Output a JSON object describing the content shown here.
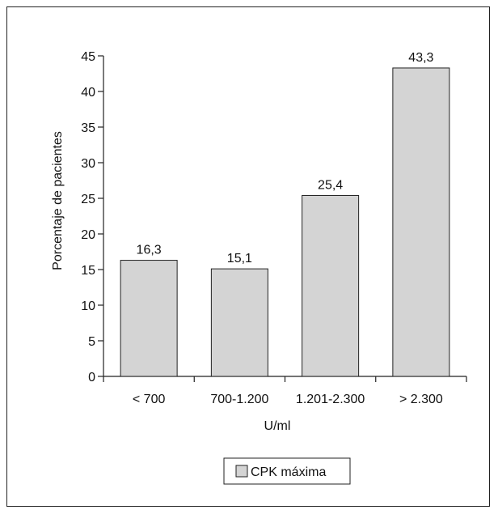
{
  "chart_data": {
    "type": "bar",
    "categories": [
      "< 700",
      "700-1.200",
      "1.201-2.300",
      "> 2.300"
    ],
    "series": [
      {
        "name": "CPK máxima",
        "values": [
          16.3,
          15.1,
          25.4,
          43.3
        ]
      }
    ],
    "value_labels": [
      "16,3",
      "15,1",
      "25,4",
      "43,3"
    ],
    "title": "",
    "xlabel": "U/ml",
    "ylabel": "Porcentaje de pacientes",
    "ylim": [
      0,
      45
    ],
    "yticks": [
      0,
      5,
      10,
      15,
      20,
      25,
      30,
      35,
      40,
      45
    ],
    "grid": false,
    "legend_position": "bottom",
    "colors": {
      "bar_fill": "#d4d4d4",
      "bar_stroke": "#222222",
      "axis": "#222222"
    }
  }
}
